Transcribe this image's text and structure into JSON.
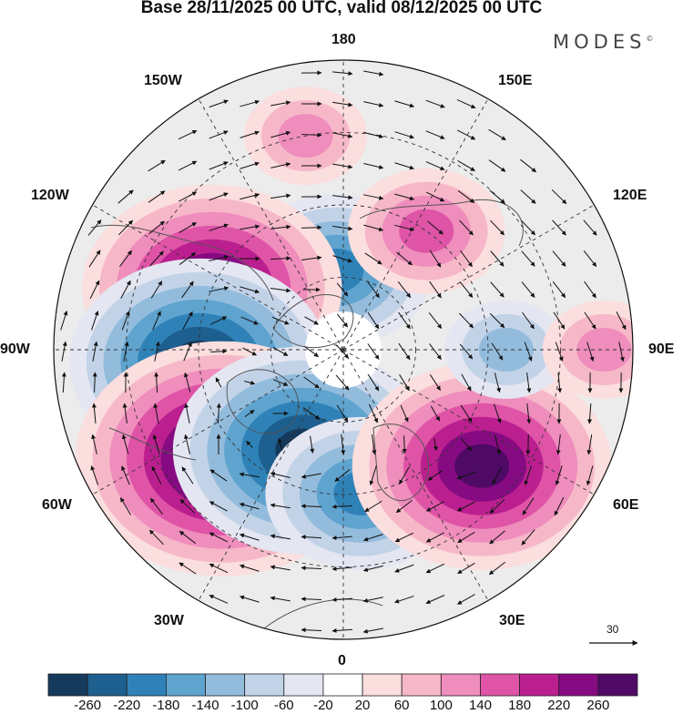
{
  "title": "Base 28/11/2025 00 UTC, valid 08/12/2025 00 UTC",
  "brand": {
    "name": "MODES",
    "mark": "©"
  },
  "longitude_labels": {
    "top": "180",
    "bottom": "0",
    "left": "90W",
    "right": "90E",
    "upper_left_1": "150W",
    "upper_left_2": "120W",
    "upper_right_1": "150E",
    "upper_right_2": "120E",
    "lower_left_1": "60W",
    "lower_left_2": "30W",
    "lower_right_1": "60E",
    "lower_right_2": "30E"
  },
  "reference_vector": {
    "label": "30"
  },
  "colors": {
    "land_outline": "#555555",
    "grid": "#333333",
    "neutral": "#ececec"
  },
  "colorbar": {
    "ticks": [
      "-260",
      "-220",
      "-180",
      "-140",
      "-100",
      "-60",
      "-20",
      "20",
      "60",
      "100",
      "140",
      "180",
      "220",
      "260"
    ],
    "colors": [
      "#153a5c",
      "#1d5f8f",
      "#2f82b8",
      "#5fa3cf",
      "#93bcdc",
      "#c2d3e8",
      "#e4e6f1",
      "#ffffff",
      "#fbdede",
      "#f6b8c8",
      "#ef8dbd",
      "#df54a7",
      "#bb1f8f",
      "#860b82",
      "#4f0a66"
    ]
  },
  "anomaly_centers": [
    {
      "name": "low-near-180",
      "value": -140,
      "lat": 68,
      "lon": -175
    },
    {
      "name": "high-east-siberia",
      "value": 120,
      "lat": 50,
      "lon": 145
    },
    {
      "name": "high-alaska-west-canada",
      "value": 230,
      "lat": 50,
      "lon": -115
    },
    {
      "name": "low-hudson-bay",
      "value": -240,
      "lat": 50,
      "lon": -85
    },
    {
      "name": "high-north-atlantic",
      "value": 260,
      "lat": 45,
      "lon": -48
    },
    {
      "name": "low-greenland-iceland",
      "value": -230,
      "lat": 60,
      "lon": -22
    },
    {
      "name": "low-scandinavia",
      "value": -150,
      "lat": 50,
      "lon": 7
    },
    {
      "name": "high-urals",
      "value": 240,
      "lat": 40,
      "lon": 50
    },
    {
      "name": "low-siberia",
      "value": -90,
      "lat": 45,
      "lon": 90
    },
    {
      "name": "high-far-east",
      "value": 70,
      "lat": 18,
      "lon": 90
    },
    {
      "name": "high-pacific-ne",
      "value": 60,
      "lat": 30,
      "lon": -170
    }
  ]
}
